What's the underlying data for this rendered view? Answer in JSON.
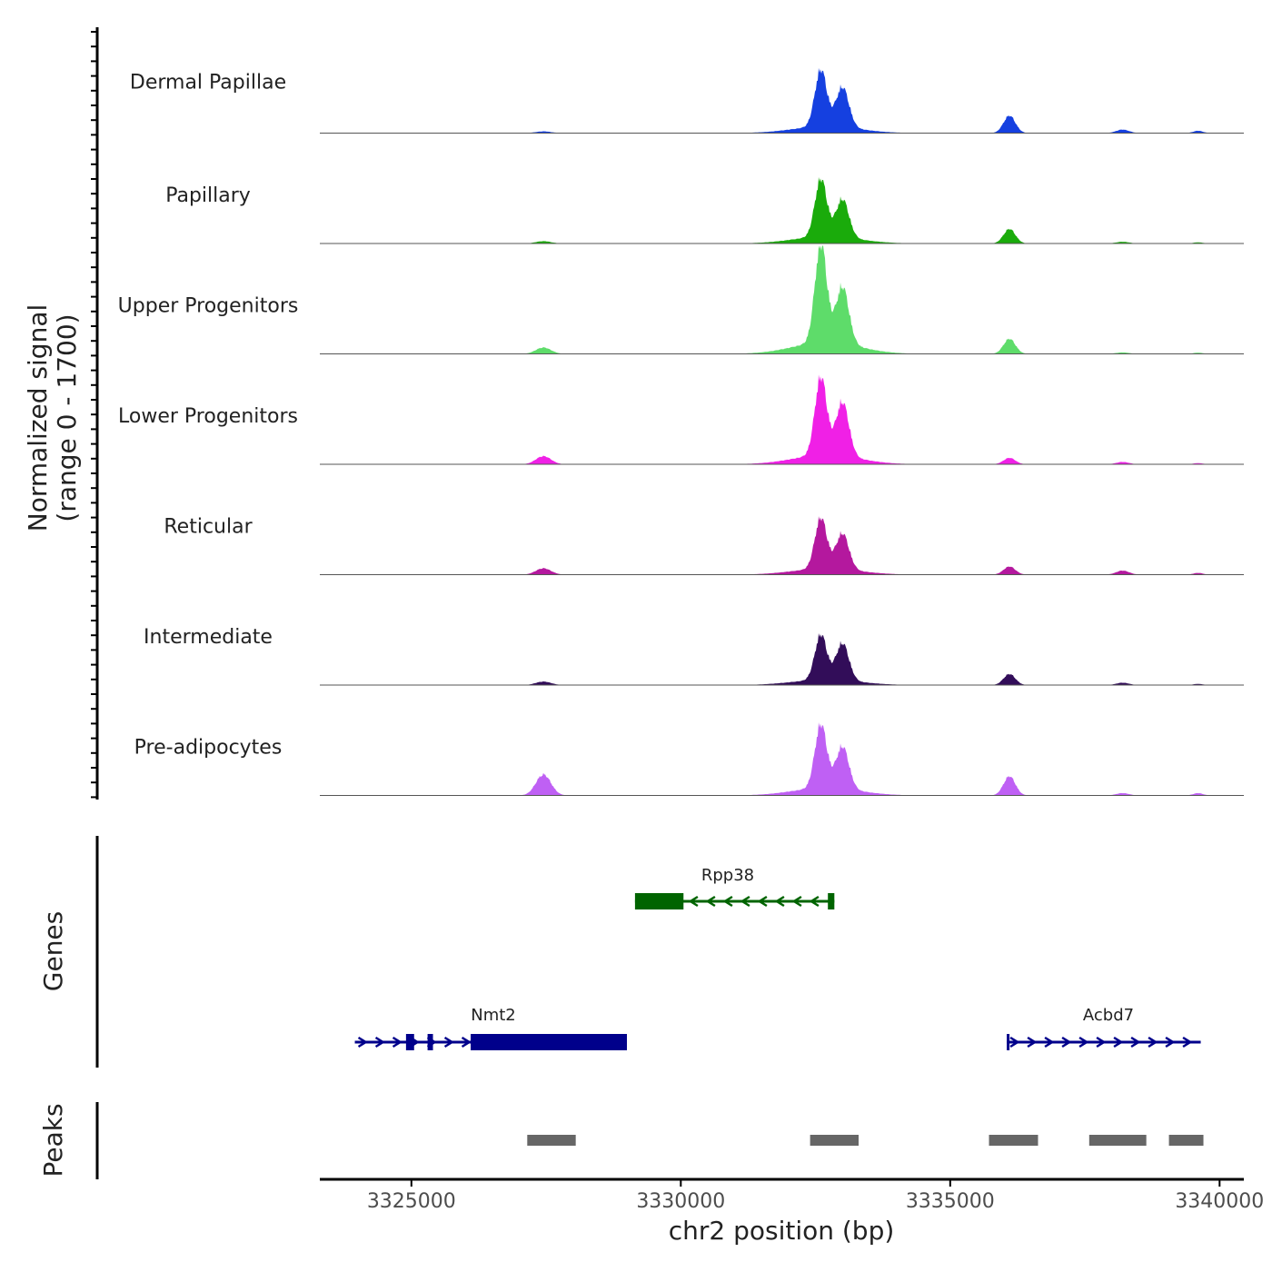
{
  "chart_data": {
    "type": "area",
    "title": "",
    "ylabel_signal": [
      "Normalized signal",
      "(range 0 - 1700)"
    ],
    "ylabel_genes": "Genes",
    "ylabel_peaks": "Peaks",
    "xlabel": "chr2 position (bp)",
    "xlim": [
      3323300,
      3340450
    ],
    "x_ticks": [
      3325000,
      3330000,
      3335000,
      3340000
    ],
    "x_tick_labels": [
      "3325000",
      "3330000",
      "3335000",
      "3340000"
    ],
    "y_range": [
      0,
      1700
    ],
    "peak_centers_bp": [
      3327450,
      3332600,
      3333000,
      3336100,
      3338200,
      3339600
    ],
    "tracks": [
      {
        "name": "Dermal Papillae",
        "color": "#1540e0",
        "peaks": [
          30,
          980,
          690,
          300,
          60,
          40
        ]
      },
      {
        "name": "Papillary",
        "color": "#1aab0b",
        "peaks": [
          40,
          1000,
          660,
          250,
          30,
          20
        ]
      },
      {
        "name": "Upper Progenitors",
        "color": "#5edc6a",
        "peaks": [
          110,
          1700,
          980,
          260,
          25,
          20
        ]
      },
      {
        "name": "Lower Progenitors",
        "color": "#f020e6",
        "peaks": [
          140,
          1350,
          930,
          110,
          40,
          20
        ]
      },
      {
        "name": "Reticular",
        "color": "#b4189e",
        "peaks": [
          110,
          880,
          620,
          140,
          70,
          30
        ]
      },
      {
        "name": "Intermediate",
        "color": "#320d59",
        "peaks": [
          60,
          780,
          640,
          190,
          40,
          20
        ]
      },
      {
        "name": "Pre-adipocytes",
        "color": "#bf60f4",
        "peaks": [
          360,
          1100,
          730,
          330,
          40,
          40
        ]
      }
    ],
    "genes": [
      {
        "name": "Rpp38",
        "color": "#006400",
        "strand": "-",
        "start": 3329150,
        "end": 3332850,
        "exons": [
          [
            3329150,
            3330050
          ],
          [
            3332730,
            3332850
          ]
        ]
      },
      {
        "name": "Nmt2",
        "color": "#00008b",
        "strand": "+",
        "start": 3323950,
        "end": 3329000,
        "exons": [
          [
            3324900,
            3325050
          ],
          [
            3325300,
            3325400
          ],
          [
            3326100,
            3329000
          ]
        ]
      },
      {
        "name": "Acbd7",
        "color": "#00008b",
        "strand": "+",
        "start": 3336050,
        "end": 3339650,
        "exons": [
          [
            3336050,
            3336100
          ]
        ]
      }
    ],
    "peak_regions": [
      [
        3327150,
        3328050
      ],
      [
        3332400,
        3333300
      ],
      [
        3335720,
        3336630
      ],
      [
        3337580,
        3338640
      ],
      [
        3339060,
        3339700
      ]
    ]
  }
}
